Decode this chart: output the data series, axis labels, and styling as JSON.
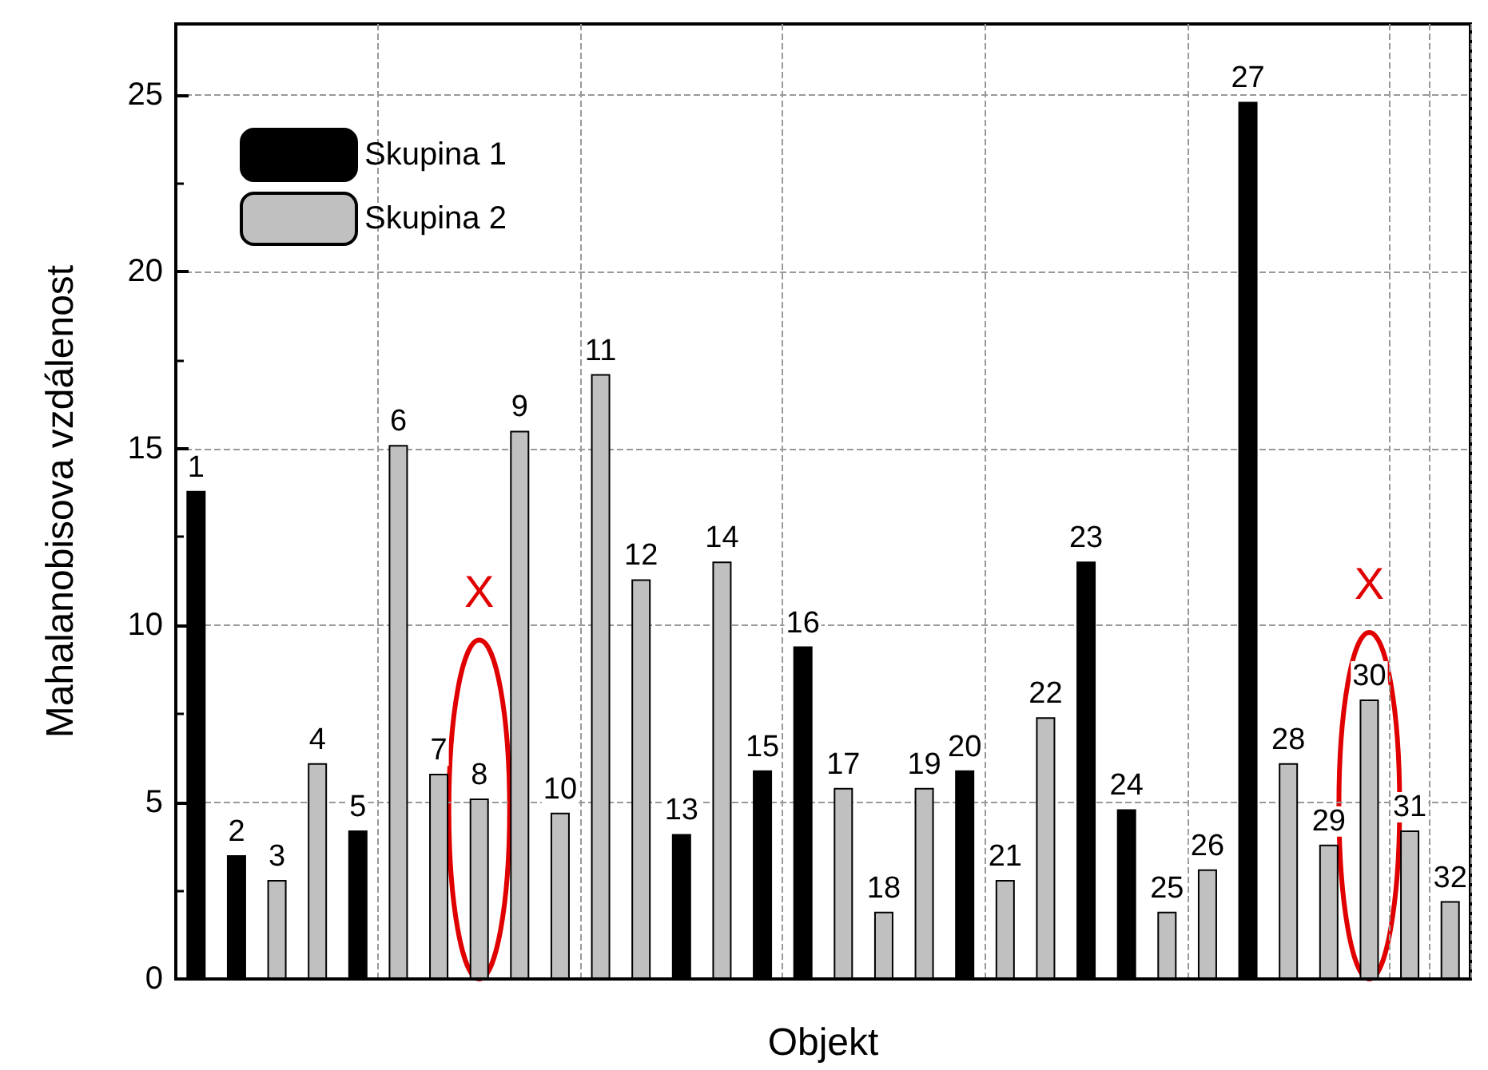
{
  "chart_data": {
    "type": "bar",
    "xlabel": "Objekt",
    "ylabel": "Mahalanobisova vzdálenost",
    "categories": [
      "1",
      "2",
      "3",
      "4",
      "5",
      "6",
      "7",
      "8",
      "9",
      "10",
      "11",
      "12",
      "13",
      "14",
      "15",
      "16",
      "17",
      "18",
      "19",
      "20",
      "21",
      "22",
      "23",
      "24",
      "25",
      "26",
      "27",
      "28",
      "29",
      "30",
      "31",
      "32"
    ],
    "series": [
      {
        "name": "Skupina 1",
        "color": "#000000",
        "values": [
          13.8,
          3.5,
          null,
          null,
          4.2,
          null,
          null,
          null,
          null,
          null,
          null,
          null,
          4.1,
          null,
          5.9,
          9.4,
          null,
          null,
          null,
          5.9,
          null,
          null,
          11.8,
          4.8,
          null,
          null,
          24.8,
          null,
          null,
          null,
          null,
          null
        ]
      },
      {
        "name": "Skupina 2",
        "color": "#c0c0c0",
        "values": [
          null,
          null,
          2.8,
          6.1,
          null,
          15.1,
          5.8,
          5.1,
          15.5,
          4.7,
          17.1,
          11.3,
          null,
          11.8,
          null,
          null,
          5.4,
          1.9,
          5.4,
          null,
          2.8,
          7.4,
          null,
          null,
          1.9,
          3.1,
          null,
          6.1,
          3.8,
          7.9,
          4.2,
          2.2
        ]
      }
    ],
    "ylim": [
      0,
      27
    ],
    "yticks": [
      0,
      5,
      10,
      15,
      20,
      25
    ],
    "grid": true,
    "legend": "top left",
    "annotations": [
      "X",
      "X"
    ]
  }
}
